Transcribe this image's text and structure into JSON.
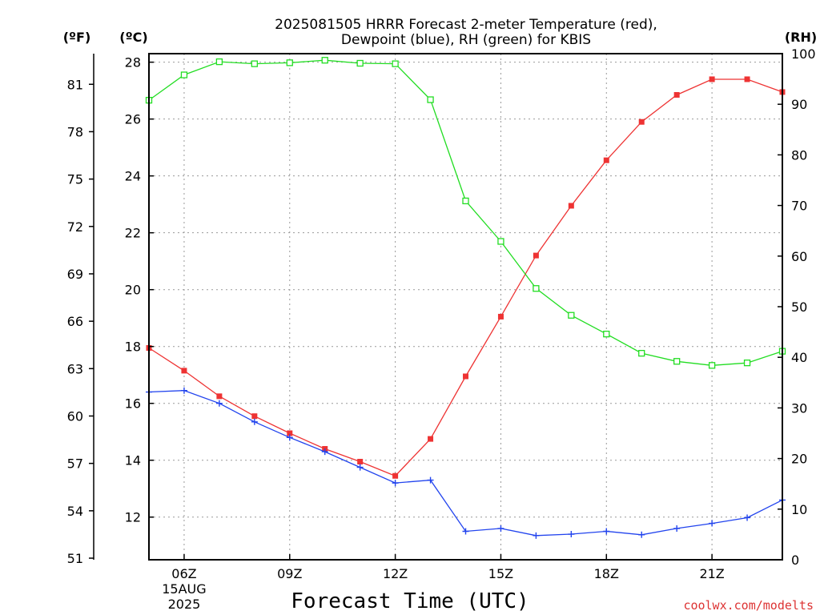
{
  "chart_data": {
    "type": "line",
    "title_line1": "2025081505 HRRR Forecast 2-meter Temperature (red),",
    "title_line2": "Dewpoint (blue), RH (green) for KBIS",
    "xlabel": "Forecast Time (UTC)",
    "watermark": "coolwx.com/modelts",
    "unit_f": "(ºF)",
    "unit_c": "(ºC)",
    "unit_rh": "(RH)",
    "x_hours": [
      5,
      6,
      7,
      8,
      9,
      10,
      11,
      12,
      13,
      14,
      15,
      16,
      17,
      18,
      19,
      20,
      21,
      22,
      23
    ],
    "xlim": [
      5,
      23
    ],
    "x_ticks": [
      {
        "hour": 6,
        "label": "06Z",
        "sub1": "15AUG",
        "sub2": "2025"
      },
      {
        "hour": 9,
        "label": "09Z"
      },
      {
        "hour": 12,
        "label": "12Z"
      },
      {
        "hour": 15,
        "label": "15Z"
      },
      {
        "hour": 18,
        "label": "18Z"
      },
      {
        "hour": 21,
        "label": "21Z"
      }
    ],
    "c_ylim": [
      10.5,
      28.3
    ],
    "c_ticks": [
      12,
      14,
      16,
      18,
      20,
      22,
      24,
      26,
      28
    ],
    "f_ticks": [
      51,
      54,
      57,
      60,
      63,
      66,
      69,
      72,
      75,
      78,
      81
    ],
    "rh_ylim": [
      0,
      100
    ],
    "rh_ticks": [
      0,
      10,
      20,
      30,
      40,
      50,
      60,
      70,
      80,
      90,
      100
    ],
    "grid": true,
    "series": [
      {
        "key": "temp",
        "color": "#ee3333",
        "marker": "filled-square",
        "axis": "c",
        "values": [
          17.95,
          17.15,
          16.25,
          15.55,
          14.95,
          14.4,
          13.95,
          13.45,
          14.75,
          16.95,
          19.05,
          21.2,
          22.95,
          24.55,
          25.9,
          26.85,
          27.4,
          27.4,
          26.95
        ]
      },
      {
        "key": "dewpoint",
        "color": "#2244ee",
        "marker": "plus",
        "axis": "c",
        "values": [
          16.4,
          16.45,
          16.0,
          15.35,
          14.8,
          14.3,
          13.75,
          13.2,
          13.3,
          11.5,
          11.6,
          11.35,
          11.4,
          11.5,
          11.38,
          11.6,
          11.78,
          11.98,
          12.6
        ]
      },
      {
        "key": "rh",
        "color": "#22dd22",
        "marker": "open-square",
        "axis": "rh",
        "values": [
          90.8,
          95.8,
          98.4,
          98.0,
          98.2,
          98.7,
          98.1,
          98.0,
          90.9,
          70.9,
          62.9,
          53.6,
          48.3,
          44.6,
          40.8,
          39.2,
          38.4,
          38.9,
          41.2
        ]
      }
    ]
  }
}
